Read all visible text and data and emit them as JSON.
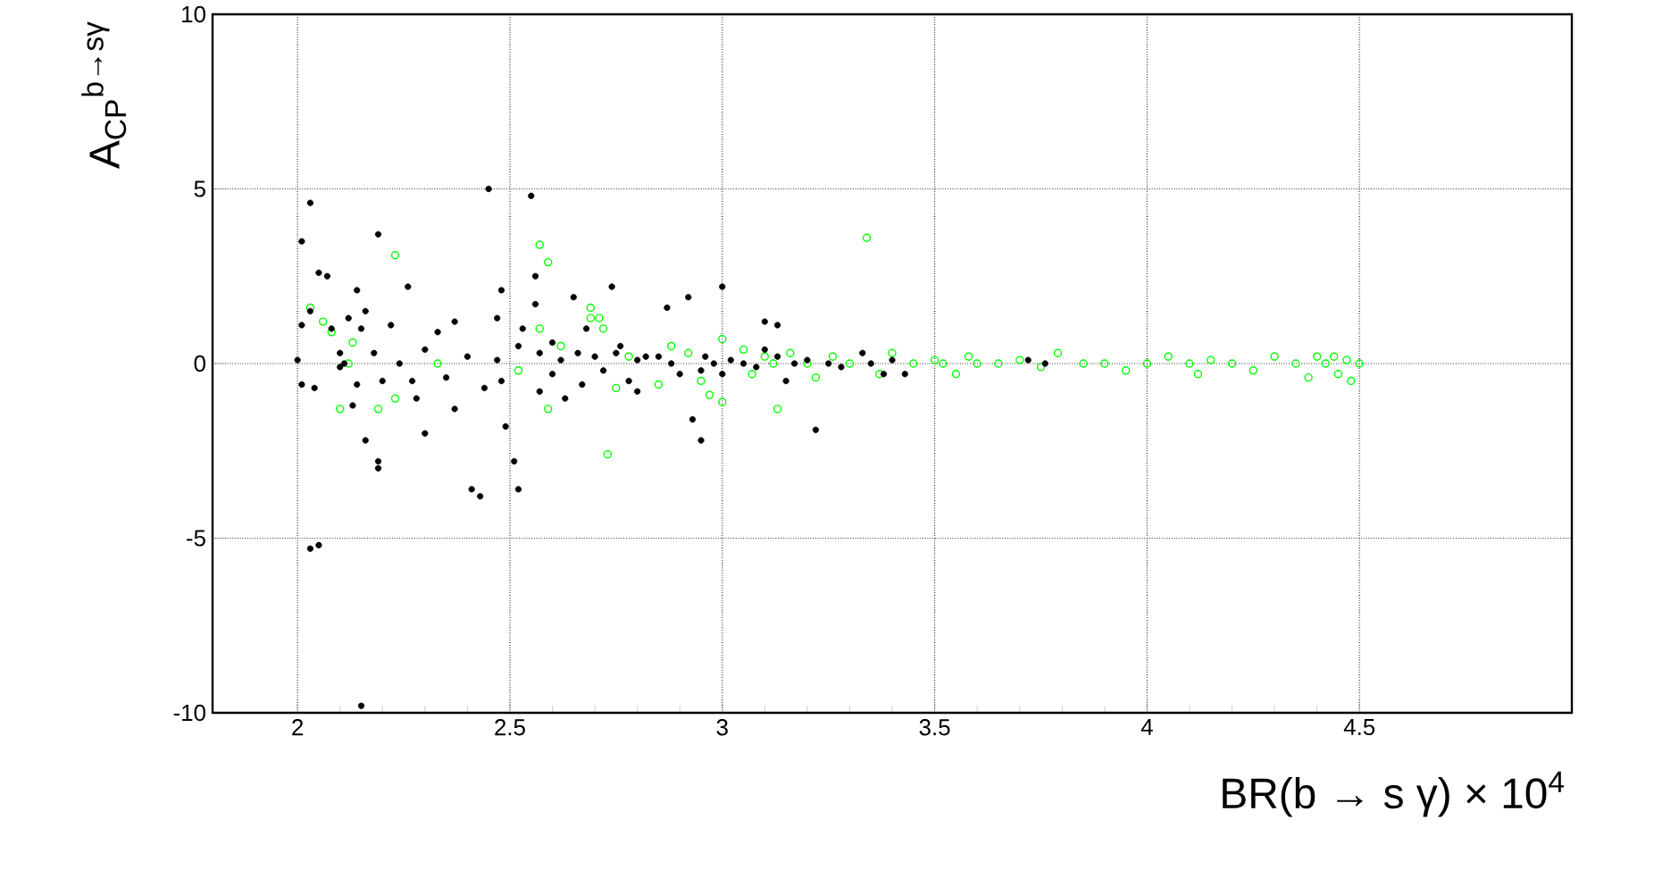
{
  "chart_data": {
    "type": "scatter",
    "xlabel": "BR(b → s γ) × 10$^{4}$",
    "ylabel": "A$_{CP}$$^{b→sγ}$",
    "xlim": [
      1.8,
      5.0
    ],
    "ylim": [
      -10,
      10
    ],
    "xticks": [
      2,
      2.5,
      3,
      3.5,
      4,
      4.5
    ],
    "yticks": [
      -10,
      -5,
      0,
      5,
      10
    ],
    "grid": true,
    "marker": "circle",
    "series": [
      {
        "color": "#00ff00",
        "x": [
          2.03,
          2.06,
          2.08,
          2.12,
          2.1,
          2.19,
          2.23,
          2.23,
          2.13,
          2.33,
          2.52,
          2.57,
          2.59,
          2.57,
          2.59,
          2.62,
          2.69,
          2.69,
          2.72,
          2.73,
          2.75,
          2.78,
          2.71,
          2.85,
          2.88,
          2.92,
          2.95,
          2.97,
          3.0,
          3.0,
          3.05,
          3.07,
          3.1,
          3.12,
          3.13,
          3.16,
          3.2,
          3.22,
          3.26,
          3.3,
          3.34,
          3.37,
          3.4,
          3.45,
          3.5,
          3.55,
          3.6,
          3.65,
          3.7,
          3.75,
          3.79,
          3.85,
          3.9,
          3.95,
          4.0,
          4.05,
          4.1,
          4.12,
          4.15,
          4.2,
          4.25,
          4.3,
          4.35,
          4.38,
          4.4,
          4.42,
          4.45,
          4.47,
          4.48,
          4.5,
          4.44,
          3.52,
          3.58
        ],
        "values": [
          1.6,
          1.2,
          0.9,
          0.0,
          -1.3,
          -1.3,
          -1.0,
          3.1,
          0.6,
          0.0,
          -0.2,
          3.4,
          2.9,
          1.0,
          -1.3,
          0.5,
          1.6,
          1.3,
          1.0,
          -2.6,
          -0.7,
          0.2,
          1.3,
          -0.6,
          0.5,
          0.3,
          -0.5,
          -0.9,
          -1.1,
          0.7,
          0.4,
          -0.3,
          0.2,
          0.0,
          -1.3,
          0.3,
          0.0,
          -0.4,
          0.2,
          0.0,
          3.6,
          -0.3,
          0.3,
          0.0,
          0.1,
          -0.3,
          0.0,
          0.0,
          0.1,
          -0.1,
          0.3,
          0.0,
          0.0,
          -0.2,
          0.0,
          0.2,
          0.0,
          -0.3,
          0.1,
          0.0,
          -0.2,
          0.2,
          0.0,
          -0.4,
          0.2,
          0.0,
          -0.3,
          0.1,
          -0.5,
          0.0,
          0.2,
          0.0,
          0.2
        ]
      },
      {
        "color": "#000000",
        "x": [
          2.03,
          2.01,
          2.01,
          2.0,
          2.01,
          2.04,
          2.03,
          2.05,
          2.05,
          2.07,
          2.03,
          2.08,
          2.1,
          2.1,
          2.11,
          2.12,
          2.14,
          2.16,
          2.15,
          2.14,
          2.13,
          2.16,
          2.15,
          2.19,
          2.19,
          2.19,
          2.18,
          2.2,
          2.22,
          2.24,
          2.26,
          2.27,
          2.3,
          2.28,
          2.3,
          2.33,
          2.35,
          2.37,
          2.37,
          2.4,
          2.41,
          2.43,
          2.44,
          2.45,
          2.47,
          2.47,
          2.48,
          2.48,
          2.49,
          2.51,
          2.52,
          2.55,
          2.52,
          2.53,
          2.56,
          2.56,
          2.57,
          2.57,
          2.6,
          2.6,
          2.62,
          2.63,
          2.65,
          2.66,
          2.67,
          2.68,
          2.7,
          2.72,
          2.74,
          2.76,
          2.78,
          2.8,
          2.8,
          2.82,
          2.87,
          2.88,
          2.9,
          2.92,
          2.93,
          2.95,
          2.96,
          2.98,
          3.0,
          3.0,
          3.02,
          3.05,
          3.08,
          3.1,
          3.1,
          3.13,
          3.13,
          3.15,
          3.17,
          3.22,
          3.2,
          3.25,
          3.28,
          3.33,
          3.35,
          3.38,
          3.4,
          3.43,
          3.72,
          3.76,
          2.85,
          2.95,
          2.75
        ],
        "values": [
          4.6,
          3.5,
          1.1,
          0.1,
          -0.6,
          -0.7,
          -5.3,
          -5.2,
          2.6,
          2.5,
          1.5,
          1.0,
          0.3,
          -0.1,
          0.0,
          1.3,
          2.1,
          1.5,
          1.0,
          -0.6,
          -1.2,
          -2.2,
          -9.8,
          3.7,
          -2.8,
          -3.0,
          0.3,
          -0.5,
          1.1,
          0.0,
          2.2,
          -0.5,
          0.4,
          -1.0,
          -2.0,
          0.9,
          -0.4,
          -1.3,
          1.2,
          0.2,
          -3.6,
          -3.8,
          -0.7,
          5.0,
          1.3,
          0.1,
          -0.5,
          2.1,
          -1.8,
          -2.8,
          -3.6,
          4.8,
          0.5,
          1.0,
          2.5,
          1.7,
          0.3,
          -0.8,
          -0.3,
          0.6,
          0.1,
          -1.0,
          1.9,
          0.3,
          -0.6,
          1.0,
          0.2,
          -0.2,
          2.2,
          0.5,
          -0.5,
          0.1,
          -0.8,
          0.2,
          1.6,
          0.0,
          -0.3,
          1.9,
          -1.6,
          -2.2,
          0.2,
          0.0,
          2.2,
          -0.3,
          0.1,
          0.0,
          -0.1,
          0.4,
          1.2,
          0.2,
          1.1,
          -0.5,
          0.0,
          -1.9,
          0.1,
          0.0,
          -0.1,
          0.3,
          0.0,
          -0.3,
          0.1,
          -0.3,
          0.1,
          0.0,
          0.2,
          -0.2,
          0.3
        ]
      }
    ]
  }
}
